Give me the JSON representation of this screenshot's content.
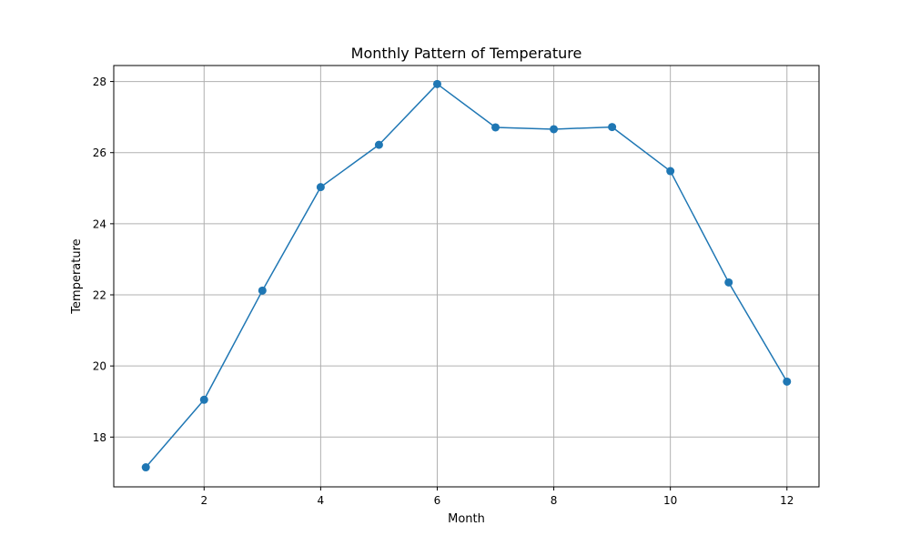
{
  "chart_data": {
    "type": "line",
    "title": "Monthly Pattern of Temperature",
    "xlabel": "Month",
    "ylabel": "Temperature",
    "x": [
      1,
      2,
      3,
      4,
      5,
      6,
      7,
      8,
      9,
      10,
      11,
      12
    ],
    "series": [
      {
        "values": [
          17.15,
          19.05,
          22.12,
          25.03,
          26.22,
          27.93,
          26.71,
          26.66,
          26.72,
          25.48,
          22.35,
          19.56
        ]
      }
    ],
    "xlim": [
      0.45,
      12.55
    ],
    "ylim": [
      16.6,
      28.45
    ],
    "xticks": [
      2,
      4,
      6,
      8,
      10,
      12
    ],
    "yticks": [
      18,
      20,
      22,
      24,
      26,
      28
    ],
    "grid": true,
    "marker": "circle",
    "colors": {
      "line": "#1f77b4",
      "grid": "#b0b0b0"
    }
  }
}
